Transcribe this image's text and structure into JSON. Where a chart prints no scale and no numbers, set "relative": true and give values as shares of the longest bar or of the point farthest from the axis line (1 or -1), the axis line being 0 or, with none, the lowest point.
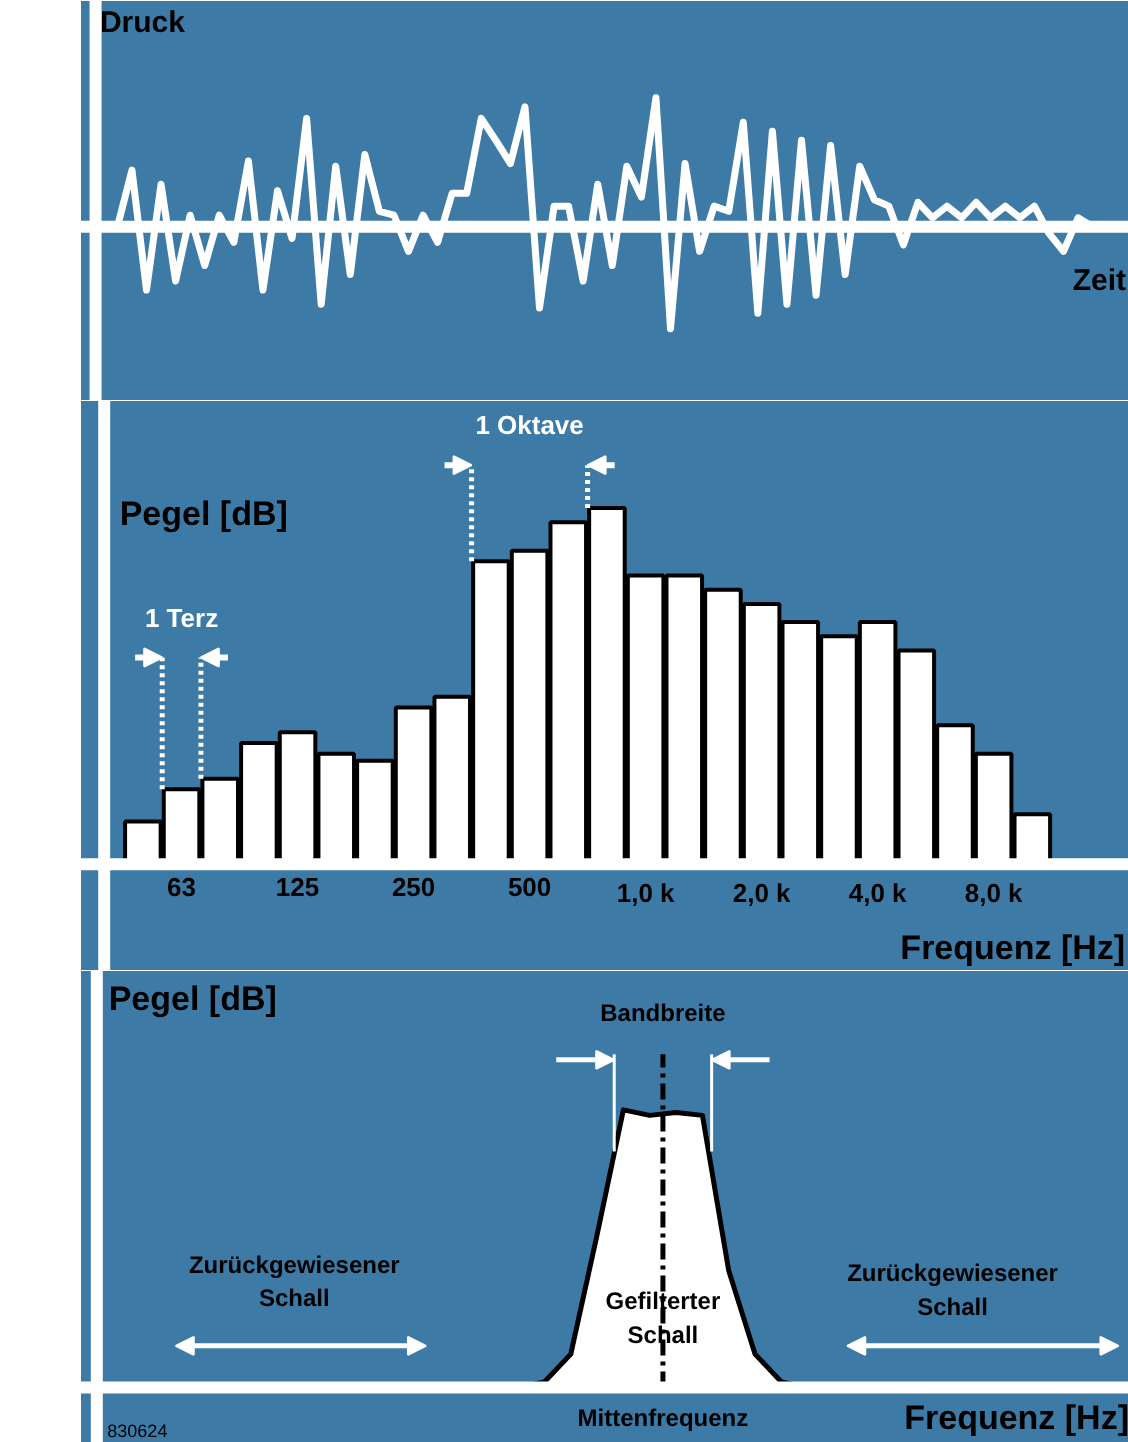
{
  "chart_data": [
    {
      "type": "line",
      "ylabel": "Druck",
      "xlabel": "Zeit",
      "relative": true,
      "categories": [
        null,
        null,
        null,
        null,
        null,
        null,
        null,
        null,
        null,
        null,
        null,
        null,
        null,
        null,
        null,
        null,
        null,
        null,
        null,
        null,
        null,
        null,
        null,
        null,
        null,
        null,
        null,
        null,
        null,
        null,
        null,
        null,
        null,
        null,
        null,
        null,
        null,
        null,
        null,
        null,
        null,
        null,
        null,
        null,
        null,
        null,
        null,
        null,
        null,
        null,
        null,
        null,
        null,
        null,
        null,
        null,
        null,
        null,
        null,
        null,
        null,
        null,
        null,
        null,
        null,
        null,
        null,
        null
      ],
      "series": [
        {
          "color": "#ffffff",
          "values": [
            0,
            0.44,
            -0.49,
            0.33,
            -0.42,
            0.09,
            -0.3,
            0.09,
            -0.12,
            0.51,
            -0.49,
            0.28,
            -0.09,
            0.84,
            -0.6,
            0.47,
            -0.37,
            0.56,
            0.12,
            0.09,
            -0.19,
            0.09,
            -0.12,
            0.26,
            0.26,
            0.84,
            0.67,
            0.49,
            0.93,
            -0.63,
            0.16,
            0.16,
            -0.42,
            0.33,
            -0.3,
            0.47,
            0.23,
            1.0,
            -0.79,
            0.49,
            -0.19,
            0.16,
            0.12,
            0.81,
            -0.67,
            0.74,
            -0.6,
            0.67,
            -0.53,
            0.63,
            -0.37,
            0.47,
            0.21,
            0.16,
            -0.14,
            0.19,
            0.07,
            0.16,
            0.07,
            0.19,
            0.07,
            0.16,
            0.07,
            0.16,
            -0.05,
            -0.19,
            0.07,
            0
          ]
        }
      ]
    },
    {
      "type": "bar",
      "ylabel": "Pegel [dB]",
      "xlabel": "Frequenz [Hz]",
      "relative": true,
      "categories": [
        null,
        "63",
        null,
        null,
        "125",
        null,
        null,
        "250",
        null,
        null,
        "500",
        null,
        null,
        "1,0 k",
        null,
        null,
        "2,0 k",
        null,
        null,
        "4,0 k",
        null,
        null,
        "8,0 k",
        null
      ],
      "values": [
        0.12,
        0.21,
        0.24,
        0.34,
        0.37,
        0.31,
        0.29,
        0.44,
        0.47,
        0.85,
        0.88,
        0.96,
        1.0,
        0.81,
        0.81,
        0.77,
        0.73,
        0.68,
        0.64,
        0.68,
        0.6,
        0.39,
        0.31,
        0.14
      ],
      "color": "#ffffff",
      "annotations": [
        "1 Oktave",
        "1 Terz"
      ]
    },
    {
      "type": "area",
      "ylabel": "Pegel [dB]",
      "xlabel": "Frequenz [Hz]",
      "relative": true,
      "categories": [
        null,
        null,
        null,
        null,
        null,
        null,
        null,
        null,
        null,
        null,
        null,
        null,
        null,
        null,
        null,
        null,
        null,
        null,
        null,
        null,
        null,
        null,
        null,
        null,
        null,
        null,
        null,
        null,
        null,
        null,
        null,
        null,
        null,
        null,
        null,
        null,
        null,
        null
      ],
      "series": [
        {
          "color": "#ffffff",
          "values": [
            0,
            0,
            0,
            0,
            0,
            0,
            0,
            0,
            0,
            0,
            0,
            0,
            0,
            0,
            0,
            0,
            0.02,
            0.12,
            0.55,
            1.0,
            0.98,
            0.99,
            0.98,
            0.42,
            0.12,
            0.02,
            0,
            0,
            0,
            0,
            0,
            0,
            0,
            0,
            0,
            0,
            0,
            0
          ]
        }
      ],
      "annotations": [
        "Bandbreite",
        "Mittenfrequenz",
        "Gefilterter Schall",
        "Zurückgewiesener Schall",
        "Zurückgewiesener Schall",
        "830624"
      ]
    }
  ]
}
